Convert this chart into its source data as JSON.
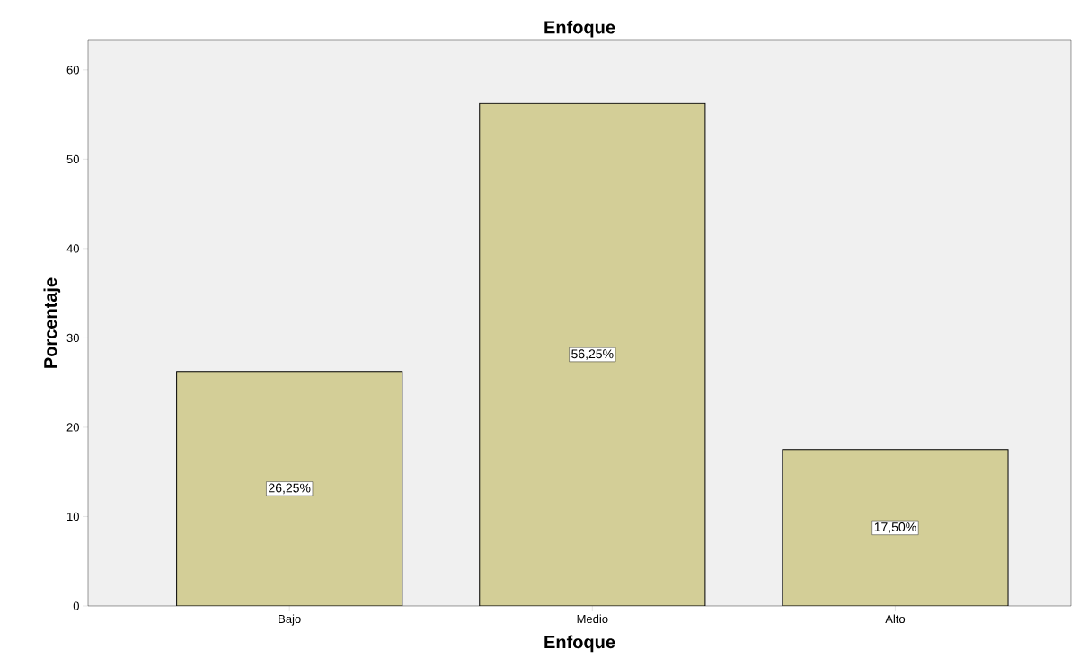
{
  "chart_data": {
    "type": "bar",
    "title": "Enfoque",
    "xlabel": "Enfoque",
    "ylabel": "Porcentaje",
    "categories": [
      "Bajo",
      "Medio",
      "Alto"
    ],
    "values": [
      26.25,
      56.25,
      17.5
    ],
    "value_labels": [
      "26,25%",
      "56,25%",
      "17,50%"
    ],
    "color": "#d3ce97",
    "ylim": [
      0,
      63.3
    ],
    "yticks": [
      0,
      10,
      20,
      30,
      40,
      50,
      60
    ],
    "grid": false
  }
}
